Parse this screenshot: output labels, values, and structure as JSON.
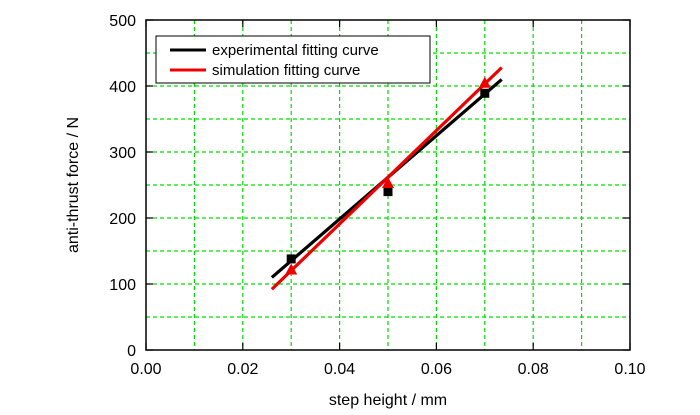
{
  "chart_data": {
    "type": "line",
    "title": "",
    "xlabel": "step height / mm",
    "ylabel": "anti-thrust force / N",
    "xlim": [
      0.0,
      0.1
    ],
    "ylim": [
      0,
      500
    ],
    "x_ticks": [
      "0.00",
      "0.02",
      "0.04",
      "0.06",
      "0.08",
      "0.10"
    ],
    "y_ticks": [
      "0",
      "100",
      "200",
      "300",
      "400",
      "500"
    ],
    "x_tick_values": [
      0.0,
      0.02,
      0.04,
      0.06,
      0.08,
      0.1
    ],
    "y_tick_values": [
      0,
      100,
      200,
      300,
      400,
      500
    ],
    "grid": true,
    "grid_style": "dashed",
    "grid_color": "#00dd00",
    "grid_x": [
      0.01,
      0.02,
      0.03,
      0.04,
      0.05,
      0.06,
      0.07,
      0.08,
      0.09
    ],
    "grid_y": [
      50,
      100,
      150,
      200,
      250,
      300,
      350,
      400,
      450
    ],
    "legend_position": "top-left",
    "series": [
      {
        "name": "experimental fitting curve",
        "color": "#000000",
        "line": {
          "x": [
            0.026,
            0.0735
          ],
          "y": [
            110,
            410
          ]
        },
        "points": {
          "marker": "square",
          "x": [
            0.03,
            0.05,
            0.07
          ],
          "y": [
            138,
            240,
            389
          ]
        }
      },
      {
        "name": "simulation fitting curve",
        "color": "#ee0000",
        "line": {
          "x": [
            0.026,
            0.0735
          ],
          "y": [
            92,
            428
          ]
        },
        "points": {
          "marker": "triangle",
          "x": [
            0.03,
            0.05,
            0.07
          ],
          "y": [
            122,
            253,
            405
          ]
        }
      }
    ]
  }
}
